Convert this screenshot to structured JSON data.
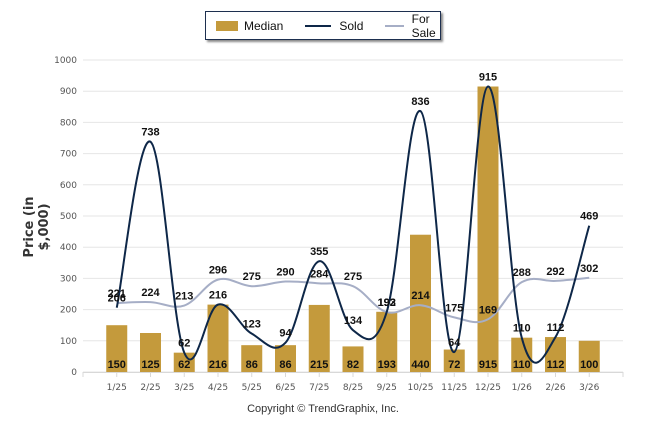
{
  "legend": {
    "items": [
      {
        "label": "Median",
        "type": "bar",
        "color": "#c49a3c"
      },
      {
        "label": "Sold",
        "type": "line",
        "color": "#0e2748"
      },
      {
        "label": "For Sale",
        "type": "line",
        "color": "#a6aec6"
      }
    ]
  },
  "footer": {
    "copyright": "Copyright © TrendGraphix, Inc."
  },
  "chart_data": {
    "type": "bar",
    "title": "",
    "xlabel": "",
    "ylabel": "Price (in $,000)",
    "ylim": [
      0,
      1000
    ],
    "yticks": [
      "0",
      "100",
      "200",
      "300",
      "400",
      "500",
      "600",
      "700",
      "800",
      "900",
      "1000"
    ],
    "grid": true,
    "legend_position": "top-center",
    "categories": [
      "1/25",
      "2/25",
      "3/25",
      "4/25",
      "5/25",
      "6/25",
      "7/25",
      "8/25",
      "9/25",
      "10/25",
      "11/25",
      "12/25",
      "1/26",
      "2/26",
      "3/26"
    ],
    "series": [
      {
        "name": "Median",
        "type": "bar",
        "color": "#c49a3c",
        "values": [
          150,
          125,
          62,
          216,
          86,
          86,
          215,
          82,
          193,
          440,
          72,
          915,
          110,
          112,
          100
        ]
      },
      {
        "name": "Sold",
        "type": "line",
        "color": "#0e2748",
        "values": [
          206,
          738,
          62,
          216,
          123,
          94,
          355,
          134,
          193,
          836,
          64,
          915,
          110,
          112,
          469
        ]
      },
      {
        "name": "For Sale",
        "type": "line",
        "color": "#a6aec6",
        "values": [
          221,
          224,
          213,
          296,
          275,
          290,
          284,
          275,
          192,
          214,
          175,
          169,
          288,
          292,
          302
        ]
      }
    ]
  }
}
